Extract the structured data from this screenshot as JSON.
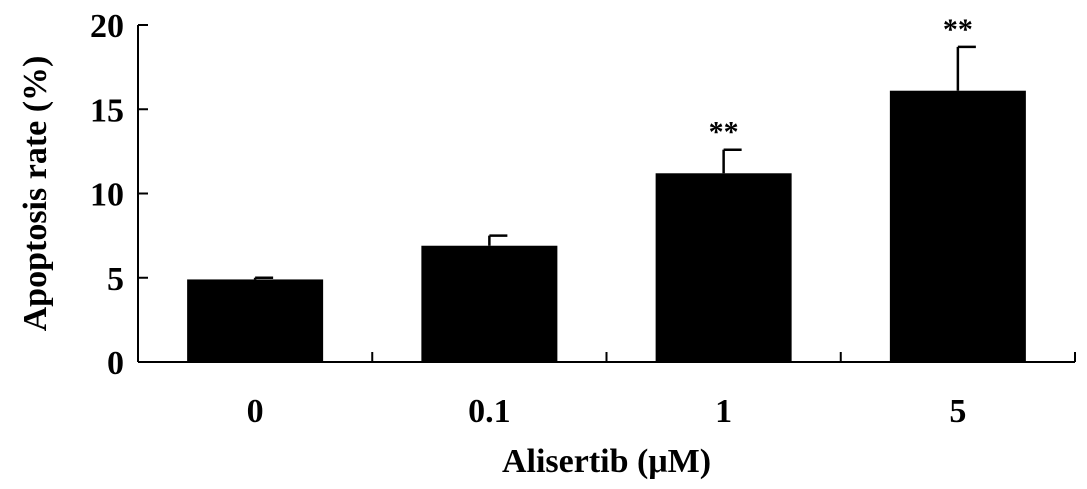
{
  "chart_data": {
    "type": "bar",
    "categories": [
      "0",
      "0.1",
      "1",
      "5"
    ],
    "values": [
      4.9,
      6.9,
      11.2,
      16.1
    ],
    "errors": [
      0.1,
      0.6,
      1.4,
      2.6
    ],
    "significance": [
      "",
      "",
      "**",
      "**"
    ],
    "xlabel": "Alisertib (μM)",
    "ylabel": "Apoptosis rate (%)",
    "ylim": [
      0,
      20
    ],
    "yticks": [
      "0",
      "5",
      "10",
      "15",
      "20"
    ],
    "grid": false,
    "legend": "none",
    "colors": {
      "bar": "#000000"
    }
  }
}
